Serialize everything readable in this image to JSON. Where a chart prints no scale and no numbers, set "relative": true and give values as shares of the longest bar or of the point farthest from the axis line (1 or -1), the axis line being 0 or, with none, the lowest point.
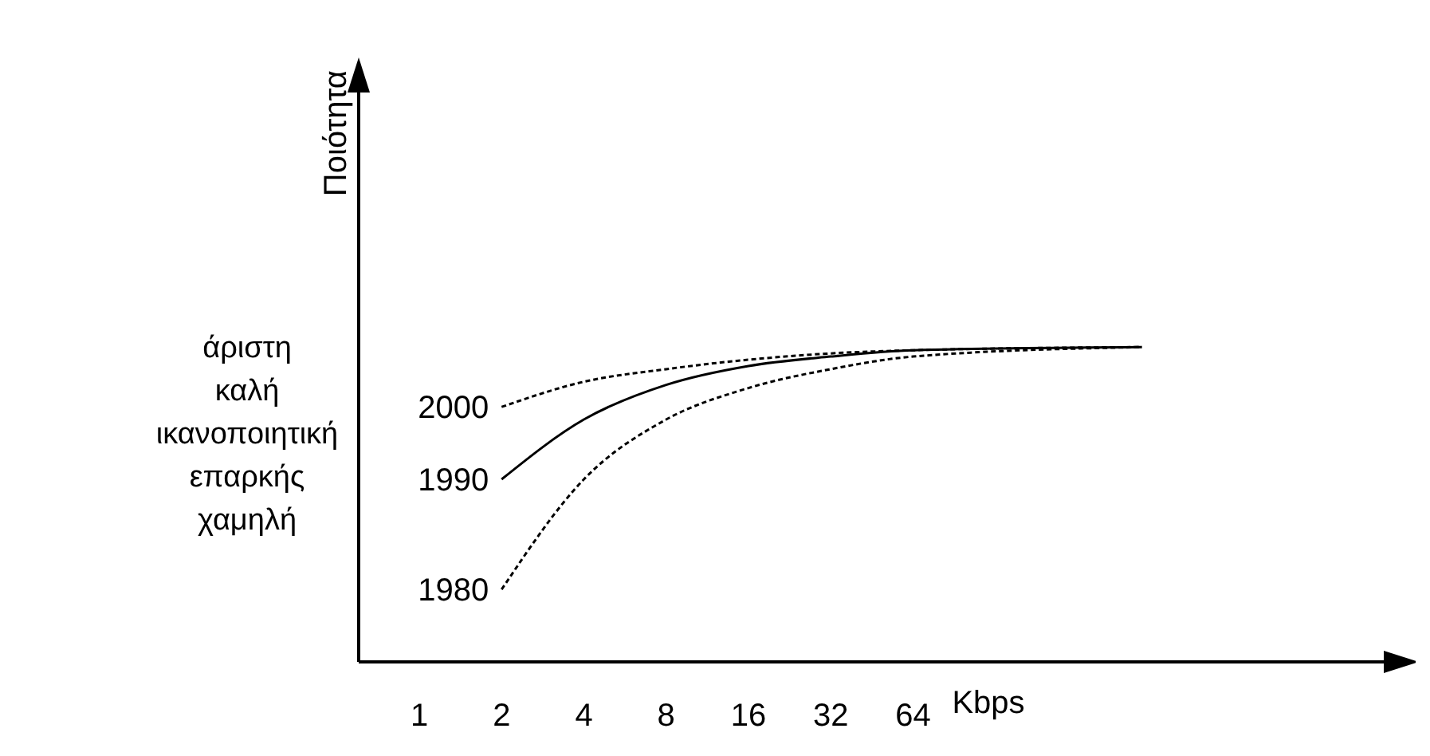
{
  "chart_data": {
    "type": "line",
    "ylabel": "Ποιότητα",
    "xlabel": "Kbps",
    "log": "x",
    "relative": true,
    "x": [
      2,
      4,
      8,
      16,
      32,
      64,
      440
    ],
    "xlim": [
      0.6,
      4300
    ],
    "xticks": [
      1,
      2,
      4,
      8,
      16,
      32,
      64
    ],
    "annotations": [
      "άριστη",
      "καλή",
      "ικανοποιητική",
      "επαρκής",
      "χαμηλή"
    ],
    "series": [
      {
        "name": "2000",
        "color": "#000000",
        "line_style": "dotted",
        "values": [
          0.81,
          0.89,
          0.93,
          0.96,
          0.98,
          0.99,
          1
        ]
      },
      {
        "name": "1990",
        "color": "#000000",
        "line_style": "solid",
        "values": [
          0.58,
          0.77,
          0.88,
          0.94,
          0.97,
          0.99,
          1
        ]
      },
      {
        "name": "1980",
        "color": "#000000",
        "line_style": "dotted",
        "values": [
          0.23,
          0.58,
          0.77,
          0.87,
          0.93,
          0.97,
          1
        ]
      }
    ]
  }
}
